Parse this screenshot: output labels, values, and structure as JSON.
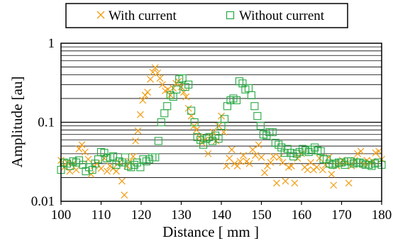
{
  "chart_data": {
    "type": "scatter",
    "title": "",
    "xlabel": "Distance [ mm ]",
    "ylabel": "Amplitude [au]",
    "xlim": [
      100,
      180
    ],
    "ylim": [
      0.01,
      1
    ],
    "y_scale": "log",
    "x_ticks": [
      "100",
      "110",
      "120",
      "130",
      "140",
      "150",
      "160",
      "170",
      "180"
    ],
    "y_ticks": [
      "0.01",
      "0.1",
      "1"
    ],
    "grid": "horizontal major and minor",
    "legend": "top, outside plot area",
    "series": [
      {
        "name": "With current",
        "marker": "x",
        "color": "#f39c12",
        "points": [
          [
            100.0,
            0.033
          ],
          [
            100.8,
            0.027
          ],
          [
            101.5,
            0.031
          ],
          [
            102.2,
            0.024
          ],
          [
            103.0,
            0.03
          ],
          [
            103.8,
            0.025
          ],
          [
            104.5,
            0.046
          ],
          [
            105.2,
            0.052
          ],
          [
            106.0,
            0.042
          ],
          [
            106.8,
            0.034
          ],
          [
            107.5,
            0.022
          ],
          [
            108.3,
            0.028
          ],
          [
            109.0,
            0.03
          ],
          [
            110.0,
            0.026
          ],
          [
            110.8,
            0.035
          ],
          [
            111.5,
            0.024
          ],
          [
            112.2,
            0.028
          ],
          [
            113.0,
            0.026
          ],
          [
            113.8,
            0.024
          ],
          [
            114.5,
            0.031
          ],
          [
            115.2,
            0.018
          ],
          [
            115.8,
            0.012
          ],
          [
            116.5,
            0.028
          ],
          [
            117.2,
            0.032
          ],
          [
            118.0,
            0.037
          ],
          [
            118.6,
            0.058
          ],
          [
            119.2,
            0.078
          ],
          [
            119.8,
            0.125
          ],
          [
            120.4,
            0.19
          ],
          [
            121.0,
            0.22
          ],
          [
            121.6,
            0.24
          ],
          [
            122.3,
            0.35
          ],
          [
            122.9,
            0.43
          ],
          [
            123.5,
            0.49
          ],
          [
            124.1,
            0.42
          ],
          [
            124.7,
            0.36
          ],
          [
            125.3,
            0.3
          ],
          [
            126.0,
            0.25
          ],
          [
            126.7,
            0.26
          ],
          [
            127.3,
            0.22
          ],
          [
            128.0,
            0.27
          ],
          [
            128.7,
            0.31
          ],
          [
            129.3,
            0.33
          ],
          [
            130.0,
            0.28
          ],
          [
            130.6,
            0.24
          ],
          [
            131.2,
            0.21
          ],
          [
            131.8,
            0.15
          ],
          [
            132.5,
            0.12
          ],
          [
            133.2,
            0.09
          ],
          [
            133.8,
            0.08
          ],
          [
            134.5,
            0.065
          ],
          [
            135.2,
            0.055
          ],
          [
            136.0,
            0.06
          ],
          [
            136.7,
            0.04
          ],
          [
            137.4,
            0.065
          ],
          [
            138.0,
            0.075
          ],
          [
            138.7,
            0.058
          ],
          [
            139.3,
            0.09
          ],
          [
            140.0,
            0.12
          ],
          [
            140.6,
            0.075
          ],
          [
            141.3,
            0.028
          ],
          [
            142.0,
            0.035
          ],
          [
            142.6,
            0.045
          ],
          [
            143.3,
            0.03
          ],
          [
            144.0,
            0.028
          ],
          [
            144.7,
            0.032
          ],
          [
            145.5,
            0.038
          ],
          [
            146.3,
            0.032
          ],
          [
            147.0,
            0.03
          ],
          [
            147.8,
            0.045
          ],
          [
            148.5,
            0.038
          ],
          [
            149.3,
            0.052
          ],
          [
            150.0,
            0.036
          ],
          [
            150.8,
            0.023
          ],
          [
            151.5,
            0.028
          ],
          [
            152.3,
            0.031
          ],
          [
            153.0,
            0.037
          ],
          [
            153.8,
            0.017
          ],
          [
            154.5,
            0.036
          ],
          [
            155.3,
            0.031
          ],
          [
            156.0,
            0.018
          ],
          [
            156.8,
            0.027
          ],
          [
            157.5,
            0.028
          ],
          [
            158.3,
            0.017
          ],
          [
            159.0,
            0.035
          ],
          [
            160.0,
            0.04
          ],
          [
            160.8,
            0.027
          ],
          [
            161.5,
            0.025
          ],
          [
            162.3,
            0.031
          ],
          [
            163.0,
            0.025
          ],
          [
            163.8,
            0.027
          ],
          [
            164.5,
            0.035
          ],
          [
            165.3,
            0.025
          ],
          [
            166.0,
            0.029
          ],
          [
            166.8,
            0.036
          ],
          [
            167.5,
            0.022
          ],
          [
            168.0,
            0.016
          ],
          [
            168.8,
            0.028
          ],
          [
            169.5,
            0.03
          ],
          [
            170.2,
            0.033
          ],
          [
            171.0,
            0.031
          ],
          [
            171.8,
            0.017
          ],
          [
            172.5,
            0.028
          ],
          [
            173.3,
            0.033
          ],
          [
            174.0,
            0.04
          ],
          [
            174.8,
            0.043
          ],
          [
            175.5,
            0.029
          ],
          [
            176.3,
            0.033
          ],
          [
            177.0,
            0.031
          ],
          [
            177.8,
            0.032
          ],
          [
            178.5,
            0.041
          ],
          [
            179.3,
            0.043
          ],
          [
            180.0,
            0.034
          ]
        ]
      },
      {
        "name": "Without current",
        "marker": "square",
        "color": "#27a844",
        "points": [
          [
            100.0,
            0.025
          ],
          [
            100.7,
            0.031
          ],
          [
            101.5,
            0.03
          ],
          [
            102.3,
            0.028
          ],
          [
            103.0,
            0.032
          ],
          [
            103.8,
            0.031
          ],
          [
            104.5,
            0.033
          ],
          [
            105.5,
            0.029
          ],
          [
            106.2,
            0.024
          ],
          [
            107.0,
            0.027
          ],
          [
            107.8,
            0.025
          ],
          [
            108.5,
            0.03
          ],
          [
            109.3,
            0.034
          ],
          [
            110.0,
            0.042
          ],
          [
            110.8,
            0.041
          ],
          [
            111.5,
            0.035
          ],
          [
            112.3,
            0.036
          ],
          [
            113.0,
            0.037
          ],
          [
            113.8,
            0.029
          ],
          [
            114.5,
            0.032
          ],
          [
            115.3,
            0.031
          ],
          [
            116.0,
            0.036
          ],
          [
            116.8,
            0.028
          ],
          [
            117.5,
            0.027
          ],
          [
            118.3,
            0.029
          ],
          [
            119.0,
            0.031
          ],
          [
            119.8,
            0.027
          ],
          [
            120.5,
            0.034
          ],
          [
            121.3,
            0.032
          ],
          [
            122.0,
            0.034
          ],
          [
            122.8,
            0.036
          ],
          [
            123.5,
            0.036
          ],
          [
            124.3,
            0.058
          ],
          [
            125.0,
            0.1
          ],
          [
            125.8,
            0.13
          ],
          [
            126.5,
            0.16
          ],
          [
            127.3,
            0.22
          ],
          [
            128.0,
            0.21
          ],
          [
            128.8,
            0.26
          ],
          [
            129.5,
            0.35
          ],
          [
            130.3,
            0.36
          ],
          [
            131.0,
            0.28
          ],
          [
            131.8,
            0.3
          ],
          [
            132.5,
            0.14
          ],
          [
            133.3,
            0.1
          ],
          [
            134.0,
            0.065
          ],
          [
            134.8,
            0.06
          ],
          [
            135.5,
            0.052
          ],
          [
            136.3,
            0.062
          ],
          [
            137.0,
            0.065
          ],
          [
            137.8,
            0.058
          ],
          [
            138.5,
            0.068
          ],
          [
            139.3,
            0.062
          ],
          [
            140.0,
            0.09
          ],
          [
            140.8,
            0.11
          ],
          [
            141.5,
            0.16
          ],
          [
            142.3,
            0.19
          ],
          [
            143.0,
            0.2
          ],
          [
            143.8,
            0.19
          ],
          [
            144.5,
            0.33
          ],
          [
            145.3,
            0.31
          ],
          [
            146.0,
            0.26
          ],
          [
            146.8,
            0.27
          ],
          [
            147.5,
            0.22
          ],
          [
            148.3,
            0.16
          ],
          [
            149.0,
            0.12
          ],
          [
            149.8,
            0.09
          ],
          [
            150.5,
            0.07
          ],
          [
            151.3,
            0.068
          ],
          [
            152.0,
            0.075
          ],
          [
            152.8,
            0.075
          ],
          [
            153.5,
            0.055
          ],
          [
            154.3,
            0.052
          ],
          [
            155.0,
            0.048
          ],
          [
            155.8,
            0.041
          ],
          [
            156.5,
            0.046
          ],
          [
            157.3,
            0.041
          ],
          [
            158.0,
            0.037
          ],
          [
            158.8,
            0.04
          ],
          [
            159.5,
            0.042
          ],
          [
            160.3,
            0.046
          ],
          [
            161.0,
            0.044
          ],
          [
            161.8,
            0.042
          ],
          [
            162.5,
            0.045
          ],
          [
            163.3,
            0.048
          ],
          [
            164.0,
            0.044
          ],
          [
            164.8,
            0.043
          ],
          [
            165.5,
            0.034
          ],
          [
            166.3,
            0.034
          ],
          [
            167.0,
            0.03
          ],
          [
            167.8,
            0.029
          ],
          [
            168.5,
            0.03
          ],
          [
            169.3,
            0.031
          ],
          [
            170.0,
            0.031
          ],
          [
            170.8,
            0.029
          ],
          [
            171.5,
            0.032
          ],
          [
            172.3,
            0.032
          ],
          [
            173.0,
            0.03
          ],
          [
            173.8,
            0.031
          ],
          [
            174.5,
            0.031
          ],
          [
            175.3,
            0.03
          ],
          [
            176.0,
            0.029
          ],
          [
            176.8,
            0.029
          ],
          [
            177.5,
            0.028
          ],
          [
            178.3,
            0.03
          ],
          [
            179.0,
            0.031
          ],
          [
            180.0,
            0.029
          ]
        ]
      }
    ]
  }
}
